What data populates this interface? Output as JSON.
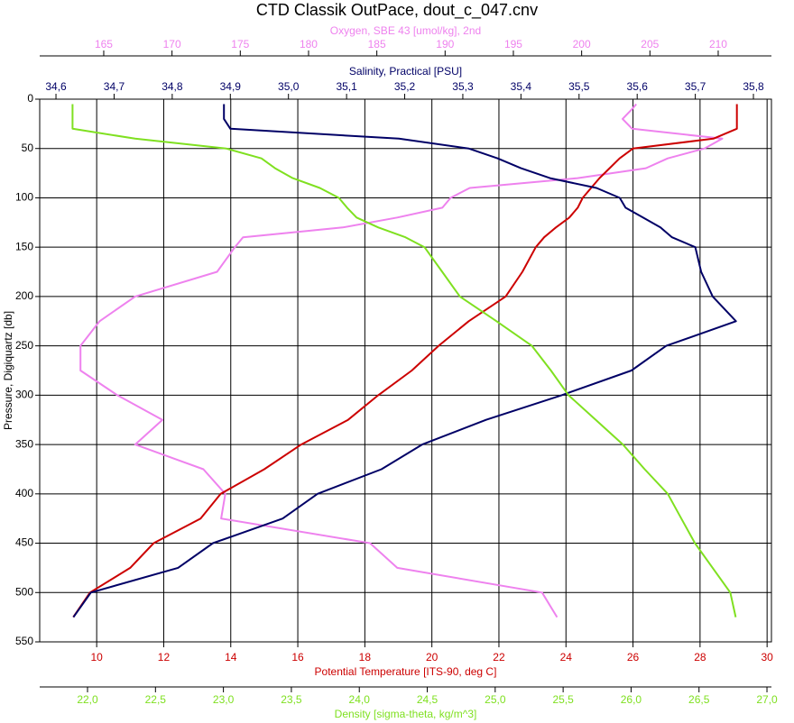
{
  "chart_data": {
    "type": "line",
    "title": "CTD Classik OutPace, dout_c_047.cnv",
    "y_label": "Pressure, Digiquartz [db]",
    "y": [
      5,
      10,
      20,
      30,
      40,
      50,
      60,
      70,
      80,
      90,
      100,
      110,
      120,
      130,
      140,
      150,
      175,
      200,
      225,
      250,
      275,
      300,
      325,
      350,
      375,
      400,
      425,
      450,
      475,
      500,
      525
    ],
    "ylim": [
      0,
      550
    ],
    "y_inverted": true,
    "yticks": [
      0,
      50,
      100,
      150,
      200,
      250,
      300,
      350,
      400,
      450,
      500,
      550
    ],
    "grid": true,
    "series": [
      {
        "name": "Potential Temperature [ITS-90, deg C]",
        "color": "#cc0000",
        "axis_position": "bottom-inner",
        "grid": true,
        "xlim": [
          8.3,
          30.13
        ],
        "xticks": [
          10,
          12,
          14,
          16,
          18,
          20,
          22,
          24,
          26,
          28,
          30
        ],
        "values": [
          29.1,
          29.1,
          29.1,
          29.1,
          28.4,
          26.0,
          25.6,
          25.3,
          25.0,
          24.75,
          24.5,
          24.35,
          24.1,
          23.7,
          23.35,
          23.1,
          22.7,
          22.2,
          21.1,
          20.2,
          19.4,
          18.4,
          17.5,
          16.1,
          15.0,
          13.7,
          13.1,
          11.7,
          11.0,
          9.8,
          9.3
        ]
      },
      {
        "name": "Salinity, Practical [PSU]",
        "color": "#000066",
        "axis_position": "top-inner",
        "xlim": [
          34.572,
          35.831
        ],
        "xticks": [
          {
            "value": 34.6,
            "label": "34,6"
          },
          {
            "value": 34.7,
            "label": "34,7"
          },
          {
            "value": 34.8,
            "label": "34,8"
          },
          {
            "value": 34.9,
            "label": "34,9"
          },
          {
            "value": 35.0,
            "label": "35,0"
          },
          {
            "value": 35.1,
            "label": "35,1"
          },
          {
            "value": 35.2,
            "label": "35,2"
          },
          {
            "value": 35.3,
            "label": "35,3"
          },
          {
            "value": 35.4,
            "label": "35,4"
          },
          {
            "value": 35.5,
            "label": "35,5"
          },
          {
            "value": 35.6,
            "label": "35,6"
          },
          {
            "value": 35.7,
            "label": "35,7"
          },
          {
            "value": 35.8,
            "label": "35,8"
          }
        ],
        "values": [
          34.889,
          34.889,
          34.889,
          34.9,
          35.19,
          35.31,
          35.36,
          35.4,
          35.45,
          35.53,
          35.57,
          35.58,
          35.61,
          35.64,
          35.66,
          35.7,
          35.71,
          35.73,
          35.77,
          35.65,
          35.59,
          35.47,
          35.34,
          35.23,
          35.16,
          35.05,
          34.99,
          34.87,
          34.81,
          34.66,
          34.63
        ]
      },
      {
        "name": "Oxygen, SBE 43 [umol/kg], 2nd",
        "color": "#ee82ee",
        "axis_position": "top-outer",
        "xlim": [
          160.31,
          213.9
        ],
        "xticks": [
          165,
          170,
          175,
          180,
          185,
          190,
          195,
          200,
          205,
          210
        ],
        "values": [
          204.0,
          203.7,
          203.0,
          203.7,
          210.3,
          209.0,
          206.3,
          204.7,
          199.7,
          191.8,
          190.4,
          189.8,
          186.5,
          182.5,
          175.2,
          174.6,
          173.3,
          167.3,
          164.7,
          163.3,
          163.3,
          166.0,
          169.3,
          167.3,
          172.3,
          173.9,
          173.6,
          184.5,
          186.5,
          197.1,
          198.2
        ]
      },
      {
        "name": "Density [sigma-theta, kg/m^3]",
        "color": "#7fe020",
        "axis_position": "bottom-outer",
        "xlim": [
          21.648,
          27.033
        ],
        "xticks": [
          {
            "value": 22.0,
            "label": "22,0"
          },
          {
            "value": 22.5,
            "label": "22,5"
          },
          {
            "value": 23.0,
            "label": "23,0"
          },
          {
            "value": 23.5,
            "label": "23,5"
          },
          {
            "value": 24.0,
            "label": "24,0"
          },
          {
            "value": 24.5,
            "label": "24,5"
          },
          {
            "value": 25.0,
            "label": "25,0"
          },
          {
            "value": 25.5,
            "label": "25,5"
          },
          {
            "value": 26.0,
            "label": "26,0"
          },
          {
            "value": 26.5,
            "label": "26,5"
          },
          {
            "value": 27.0,
            "label": "27,0"
          }
        ],
        "values": [
          21.89,
          21.89,
          21.89,
          21.89,
          22.35,
          23.02,
          23.28,
          23.38,
          23.51,
          23.71,
          23.85,
          23.91,
          23.98,
          24.14,
          24.34,
          24.48,
          24.61,
          24.74,
          25.01,
          25.27,
          25.41,
          25.54,
          25.74,
          25.94,
          26.1,
          26.27,
          26.37,
          26.47,
          26.6,
          26.73,
          26.77
        ]
      }
    ]
  }
}
